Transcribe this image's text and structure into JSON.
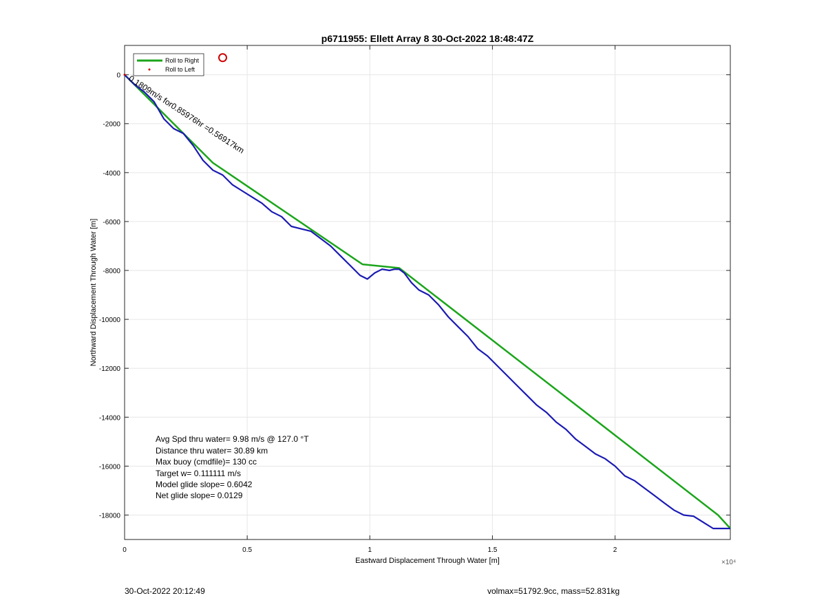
{
  "figure": {
    "footer_left": "30-Oct-2022 20:12:49",
    "footer_right": "volmax=51792.9cc, mass=52.831kg"
  },
  "chart_data": {
    "type": "line",
    "title": "p6711955: Ellett Array 8 30-Oct-2022 18:48:47Z",
    "xlabel": "Eastward Displacement Through Water [m]",
    "ylabel": "Northward Displacement Through Water [m]",
    "x_exponent_label": "×10⁴",
    "xlim": [
      0,
      24700
    ],
    "ylim": [
      -19000,
      1200
    ],
    "xticks": [
      0,
      5000,
      10000,
      15000,
      20000
    ],
    "xtick_labels": [
      "0",
      "0.5",
      "1",
      "1.5",
      "2"
    ],
    "yticks": [
      0,
      -2000,
      -4000,
      -6000,
      -8000,
      -10000,
      -12000,
      -14000,
      -16000,
      -18000
    ],
    "ytick_labels": [
      "0",
      "-2000",
      "-4000",
      "-6000",
      "-8000",
      "-10000",
      "-12000",
      "-14000",
      "-16000",
      "-18000"
    ],
    "grid": true,
    "legend_position": "top-left",
    "legend": [
      {
        "label": "Roll to Right",
        "color": "#1aa51a",
        "marker": "line"
      },
      {
        "label": "Roll to Left",
        "color": "#cc0000",
        "marker": "dot"
      }
    ],
    "series": [
      {
        "name": "Roll to Right",
        "color": "#1aa51a",
        "x": [
          0,
          3600,
          9700,
          11200,
          24200,
          24700
        ],
        "y": [
          0,
          -3600,
          -7750,
          -7900,
          -18000,
          -18550
        ]
      },
      {
        "color": "#1a1ab3",
        "x": [
          0,
          400,
          800,
          1200,
          1600,
          2000,
          2400,
          2800,
          3200,
          3600,
          4000,
          4400,
          4800,
          5200,
          5600,
          6000,
          6400,
          6800,
          7200,
          7600,
          8000,
          8400,
          8800,
          9200,
          9600,
          9900,
          10200,
          10500,
          10800,
          11000,
          11200,
          11400,
          11700,
          12000,
          12400,
          12800,
          13200,
          13600,
          14000,
          14400,
          14800,
          15200,
          15600,
          16000,
          16400,
          16800,
          17200,
          17600,
          18000,
          18400,
          18800,
          19200,
          19600,
          20000,
          20400,
          20800,
          21200,
          21600,
          22000,
          22400,
          22800,
          23200,
          23600,
          24000,
          24400,
          24700
        ],
        "y": [
          0,
          -400,
          -700,
          -1100,
          -1800,
          -2200,
          -2400,
          -2900,
          -3500,
          -3900,
          -4100,
          -4500,
          -4750,
          -5000,
          -5250,
          -5600,
          -5800,
          -6200,
          -6300,
          -6400,
          -6700,
          -7000,
          -7400,
          -7800,
          -8200,
          -8350,
          -8100,
          -7950,
          -8000,
          -7950,
          -7950,
          -8100,
          -8500,
          -8800,
          -9000,
          -9400,
          -9900,
          -10300,
          -10700,
          -11200,
          -11500,
          -11900,
          -12300,
          -12700,
          -13100,
          -13500,
          -13800,
          -14200,
          -14500,
          -14900,
          -15200,
          -15500,
          -15700,
          -16000,
          -16400,
          -16600,
          -16900,
          -17200,
          -17500,
          -17800,
          -18000,
          -18050,
          -18300,
          -18550,
          -18550,
          -18550
        ]
      }
    ],
    "segment_annotation": "0.1809m/s for0.85976hr =0.56917km",
    "stats": [
      "Avg Spd thru water=  9.98 m/s @ 127.0 °T",
      "Distance thru water= 30.89 km",
      "Max buoy (cmdfile)= 130 cc",
      "Target w= 0.111111 m/s",
      "Model glide slope= 0.6042",
      "Net glide slope= 0.0129"
    ],
    "markers": [
      {
        "x": 4000,
        "y": 700,
        "color": "#cc0000",
        "shape": "circle"
      }
    ]
  }
}
